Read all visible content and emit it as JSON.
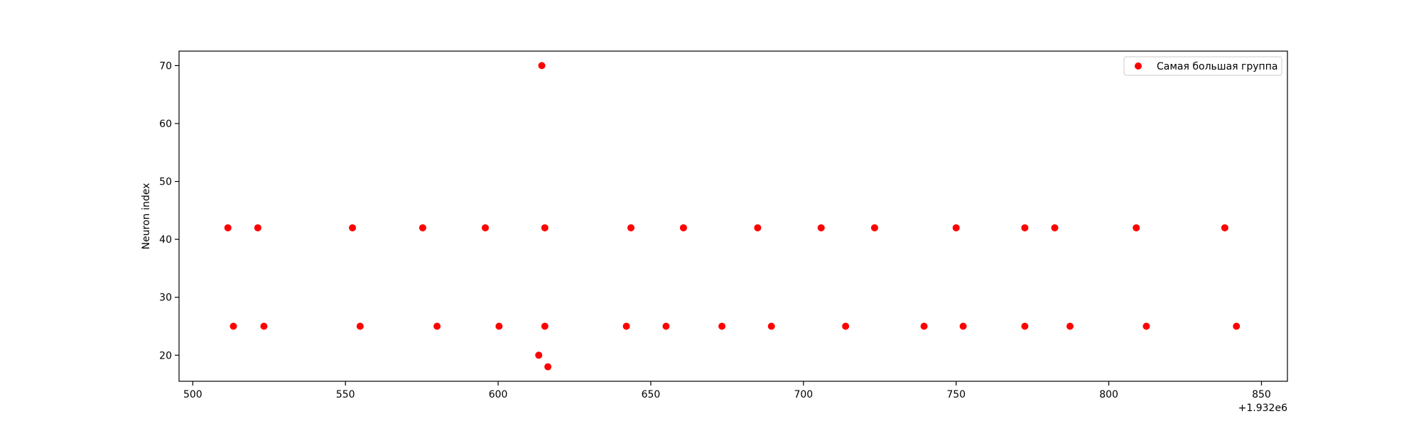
{
  "chart_data": {
    "type": "scatter",
    "title": "",
    "xlabel": "",
    "ylabel": "Neuron index",
    "x_offset_label": "+1.932e6",
    "xlim": [
      1932495.5,
      1932858.5
    ],
    "ylim": [
      15.5,
      72.5
    ],
    "xticks": [
      500,
      550,
      600,
      650,
      700,
      750,
      800,
      850
    ],
    "yticks": [
      20,
      30,
      40,
      50,
      60,
      70
    ],
    "grid": false,
    "legend_position": "top-right",
    "series": [
      {
        "name": "Самая большая группа",
        "color": "#ff0000",
        "points": [
          {
            "x": 1932511.5,
            "y": 42
          },
          {
            "x": 1932521.3,
            "y": 42
          },
          {
            "x": 1932552.3,
            "y": 42
          },
          {
            "x": 1932575.3,
            "y": 42
          },
          {
            "x": 1932595.8,
            "y": 42
          },
          {
            "x": 1932615.3,
            "y": 42
          },
          {
            "x": 1932643.5,
            "y": 42
          },
          {
            "x": 1932660.7,
            "y": 42
          },
          {
            "x": 1932685.0,
            "y": 42
          },
          {
            "x": 1932705.8,
            "y": 42
          },
          {
            "x": 1932723.3,
            "y": 42
          },
          {
            "x": 1932750.0,
            "y": 42
          },
          {
            "x": 1932772.5,
            "y": 42
          },
          {
            "x": 1932782.3,
            "y": 42
          },
          {
            "x": 1932809.0,
            "y": 42
          },
          {
            "x": 1932838.0,
            "y": 42
          },
          {
            "x": 1932513.3,
            "y": 25
          },
          {
            "x": 1932523.3,
            "y": 25
          },
          {
            "x": 1932554.8,
            "y": 25
          },
          {
            "x": 1932580.0,
            "y": 25
          },
          {
            "x": 1932600.3,
            "y": 25
          },
          {
            "x": 1932615.3,
            "y": 25
          },
          {
            "x": 1932642.0,
            "y": 25
          },
          {
            "x": 1932655.0,
            "y": 25
          },
          {
            "x": 1932673.3,
            "y": 25
          },
          {
            "x": 1932689.5,
            "y": 25
          },
          {
            "x": 1932713.8,
            "y": 25
          },
          {
            "x": 1932739.5,
            "y": 25
          },
          {
            "x": 1932752.3,
            "y": 25
          },
          {
            "x": 1932772.5,
            "y": 25
          },
          {
            "x": 1932787.3,
            "y": 25
          },
          {
            "x": 1932812.3,
            "y": 25
          },
          {
            "x": 1932841.8,
            "y": 25
          },
          {
            "x": 1932614.3,
            "y": 70
          },
          {
            "x": 1932613.3,
            "y": 20
          },
          {
            "x": 1932616.3,
            "y": 18
          }
        ]
      }
    ]
  }
}
